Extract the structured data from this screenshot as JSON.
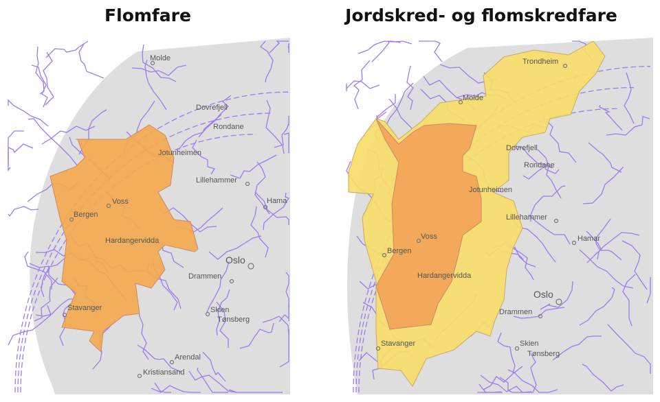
{
  "maps": [
    {
      "title": "Flomfare",
      "hazard_regions": [
        {
          "level": "orange",
          "color": "#f5a94e"
        }
      ],
      "places": [
        {
          "name": "Molde"
        },
        {
          "name": "Dovrefjell"
        },
        {
          "name": "Rondane"
        },
        {
          "name": "Jotunheimen"
        },
        {
          "name": "Lillehammer"
        },
        {
          "name": "Hama"
        },
        {
          "name": "Voss"
        },
        {
          "name": "Bergen"
        },
        {
          "name": "Hardangervidda"
        },
        {
          "name": "Oslo"
        },
        {
          "name": "Drammen"
        },
        {
          "name": "Stavanger"
        },
        {
          "name": "Skien"
        },
        {
          "name": "Tønsberg"
        },
        {
          "name": "Arendal"
        },
        {
          "name": "Kristiansand"
        }
      ]
    },
    {
      "title": "Jordskred- og flomskredfare",
      "hazard_regions": [
        {
          "level": "yellow",
          "color": "#f7dc6a"
        },
        {
          "level": "orange",
          "color": "#f2a457"
        }
      ],
      "places": [
        {
          "name": "Trondheim"
        },
        {
          "name": "Molde"
        },
        {
          "name": "Dovrefjell"
        },
        {
          "name": "Rondane"
        },
        {
          "name": "Jotunheimen"
        },
        {
          "name": "Lillehammer"
        },
        {
          "name": "Hamar"
        },
        {
          "name": "Voss"
        },
        {
          "name": "Bergen"
        },
        {
          "name": "Hardangervidda"
        },
        {
          "name": "Oslo"
        },
        {
          "name": "Drammen"
        },
        {
          "name": "Stavanger"
        },
        {
          "name": "Skien"
        },
        {
          "name": "Tønsberg"
        }
      ]
    }
  ],
  "colors": {
    "boundary": "#9b7bf0",
    "land": "#dedede",
    "sea": "#ffffff"
  }
}
